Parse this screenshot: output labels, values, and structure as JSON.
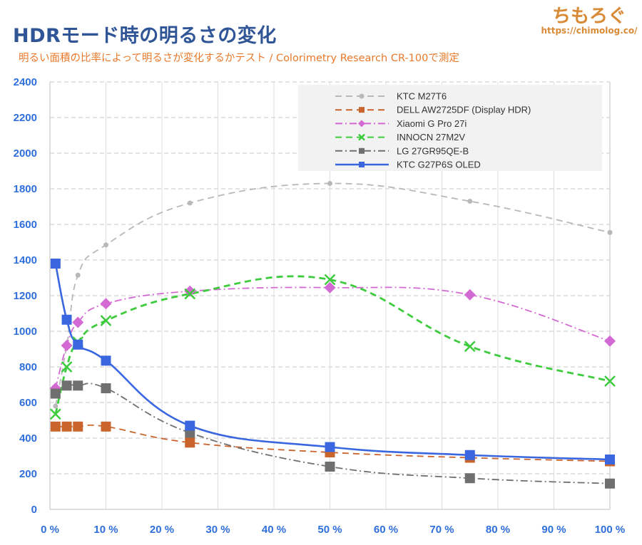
{
  "header": {
    "title": "HDRモード時の明るさの変化",
    "subtitle": "明るい面積の比率によって明るさが変化するかテスト  /  Colorimetry Research CR-100で測定",
    "brand": "ちもろぐ",
    "brand_url": "https://chimolog.co/"
  },
  "chart_data": {
    "type": "line",
    "title": "HDRモード時の明るさの変化",
    "subtitle": "明るい面積の比率によって明るさが変化するかテスト  /  Colorimetry Research CR-100で測定",
    "xlabel": "",
    "ylabel": "",
    "xlim": [
      0,
      100
    ],
    "ylim": [
      0,
      2400
    ],
    "x_ticks": [
      0,
      10,
      20,
      30,
      40,
      50,
      60,
      70,
      80,
      90,
      100
    ],
    "x_tick_labels": [
      "0 %",
      "10 %",
      "20 %",
      "30 %",
      "40 %",
      "50 %",
      "60 %",
      "70 %",
      "80 %",
      "90 %",
      "100 %"
    ],
    "y_ticks": [
      0,
      200,
      400,
      600,
      800,
      1000,
      1200,
      1400,
      1600,
      1800,
      2000,
      2200,
      2400
    ],
    "y_tick_labels": [
      "0",
      "200",
      "400",
      "600",
      "800",
      "1000",
      "1200",
      "1400",
      "1600",
      "1800",
      "2000",
      "2200",
      "2400"
    ],
    "grid": "horizontal dashed",
    "legend_position": "top-right",
    "x": [
      1,
      3,
      5,
      10,
      25,
      50,
      75,
      100
    ],
    "series": [
      {
        "name": "KTC M27T6",
        "color": "#b8b8b8",
        "dash": "dashed",
        "marker": "circle",
        "values": [
          580,
          920,
          1315,
          1485,
          1720,
          1830,
          1730,
          1555
        ]
      },
      {
        "name": "DELL AW2725DF (Display HDR)",
        "color": "#c8642c",
        "dash": "dashed",
        "marker": "square",
        "values": [
          465,
          465,
          465,
          465,
          375,
          320,
          290,
          270
        ]
      },
      {
        "name": "Xiaomi G Pro 27i",
        "color": "#d36ad3",
        "dash": "dash-dot",
        "marker": "diamond",
        "values": [
          680,
          920,
          1050,
          1155,
          1225,
          1245,
          1205,
          945
        ]
      },
      {
        "name": "INNOCN 27M2V",
        "color": "#3ecb3e",
        "dash": "dashed",
        "marker": "cross",
        "values": [
          535,
          800,
          940,
          1060,
          1210,
          1290,
          915,
          720
        ]
      },
      {
        "name": "LG 27GR95QE-B",
        "color": "#6f6f6f",
        "dash": "dash-dot",
        "marker": "square",
        "values": [
          650,
          695,
          695,
          680,
          430,
          240,
          175,
          145
        ]
      },
      {
        "name": "KTC G27P6S OLED",
        "color": "#3a67e0",
        "dash": "solid",
        "marker": "square",
        "values": [
          1380,
          1065,
          925,
          835,
          470,
          350,
          305,
          280
        ]
      }
    ]
  }
}
